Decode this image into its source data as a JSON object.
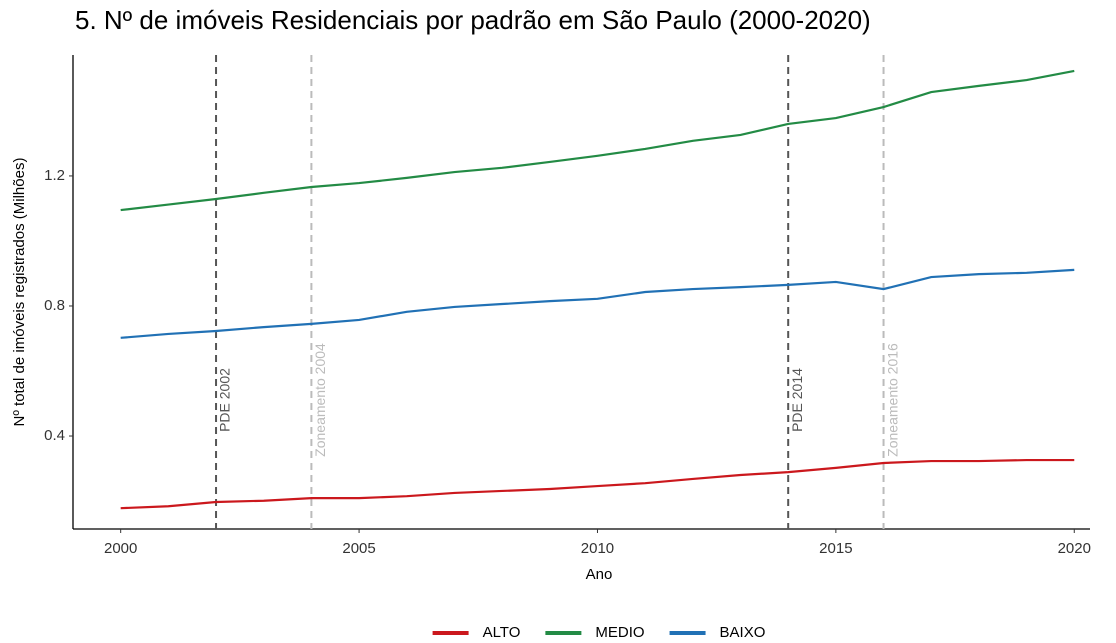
{
  "chart_data": {
    "type": "line",
    "title": "5. Nº de imóveis Residenciais por padrão em São Paulo (2000-2020)",
    "xlabel": "Ano",
    "ylabel": "Nº total de imóveis registrados (Milhões)",
    "x": [
      2000,
      2001,
      2002,
      2003,
      2004,
      2005,
      2006,
      2007,
      2008,
      2009,
      2010,
      2011,
      2012,
      2013,
      2014,
      2015,
      2016,
      2017,
      2018,
      2019,
      2020
    ],
    "series": [
      {
        "name": "ALTO",
        "color": "#cb181d",
        "values": [
          0.178,
          0.184,
          0.197,
          0.201,
          0.209,
          0.209,
          0.215,
          0.225,
          0.231,
          0.237,
          0.246,
          0.255,
          0.268,
          0.28,
          0.289,
          0.302,
          0.317,
          0.323,
          0.323,
          0.326,
          0.326
        ]
      },
      {
        "name": "MEDIO",
        "color": "#238b45",
        "values": [
          1.095,
          1.112,
          1.129,
          1.148,
          1.166,
          1.178,
          1.194,
          1.212,
          1.225,
          1.243,
          1.262,
          1.283,
          1.308,
          1.326,
          1.36,
          1.378,
          1.412,
          1.458,
          1.477,
          1.495,
          1.523
        ]
      },
      {
        "name": "BAIXO",
        "color": "#2171b5",
        "values": [
          0.702,
          0.714,
          0.723,
          0.735,
          0.745,
          0.757,
          0.782,
          0.797,
          0.806,
          0.815,
          0.822,
          0.843,
          0.852,
          0.858,
          0.865,
          0.874,
          0.852,
          0.889,
          0.898,
          0.902,
          0.911
        ]
      }
    ],
    "annotations": [
      {
        "x": 2002,
        "label": "PDE 2002",
        "color": "#555555"
      },
      {
        "x": 2004,
        "label": "Zoneamento 2004",
        "color": "#bbbbbb"
      },
      {
        "x": 2014,
        "label": "PDE 2014",
        "color": "#555555"
      },
      {
        "x": 2016,
        "label": "Zoneamento 2016",
        "color": "#bbbbbb"
      }
    ],
    "xlim": [
      1999.0,
      2020.33
    ],
    "xticks": [
      2000,
      2005,
      2010,
      2015,
      2020
    ],
    "ylim": [
      0.114,
      1.572
    ],
    "yticks": [
      0.4,
      0.8,
      1.2
    ],
    "grid": false,
    "legend": "bottom"
  }
}
